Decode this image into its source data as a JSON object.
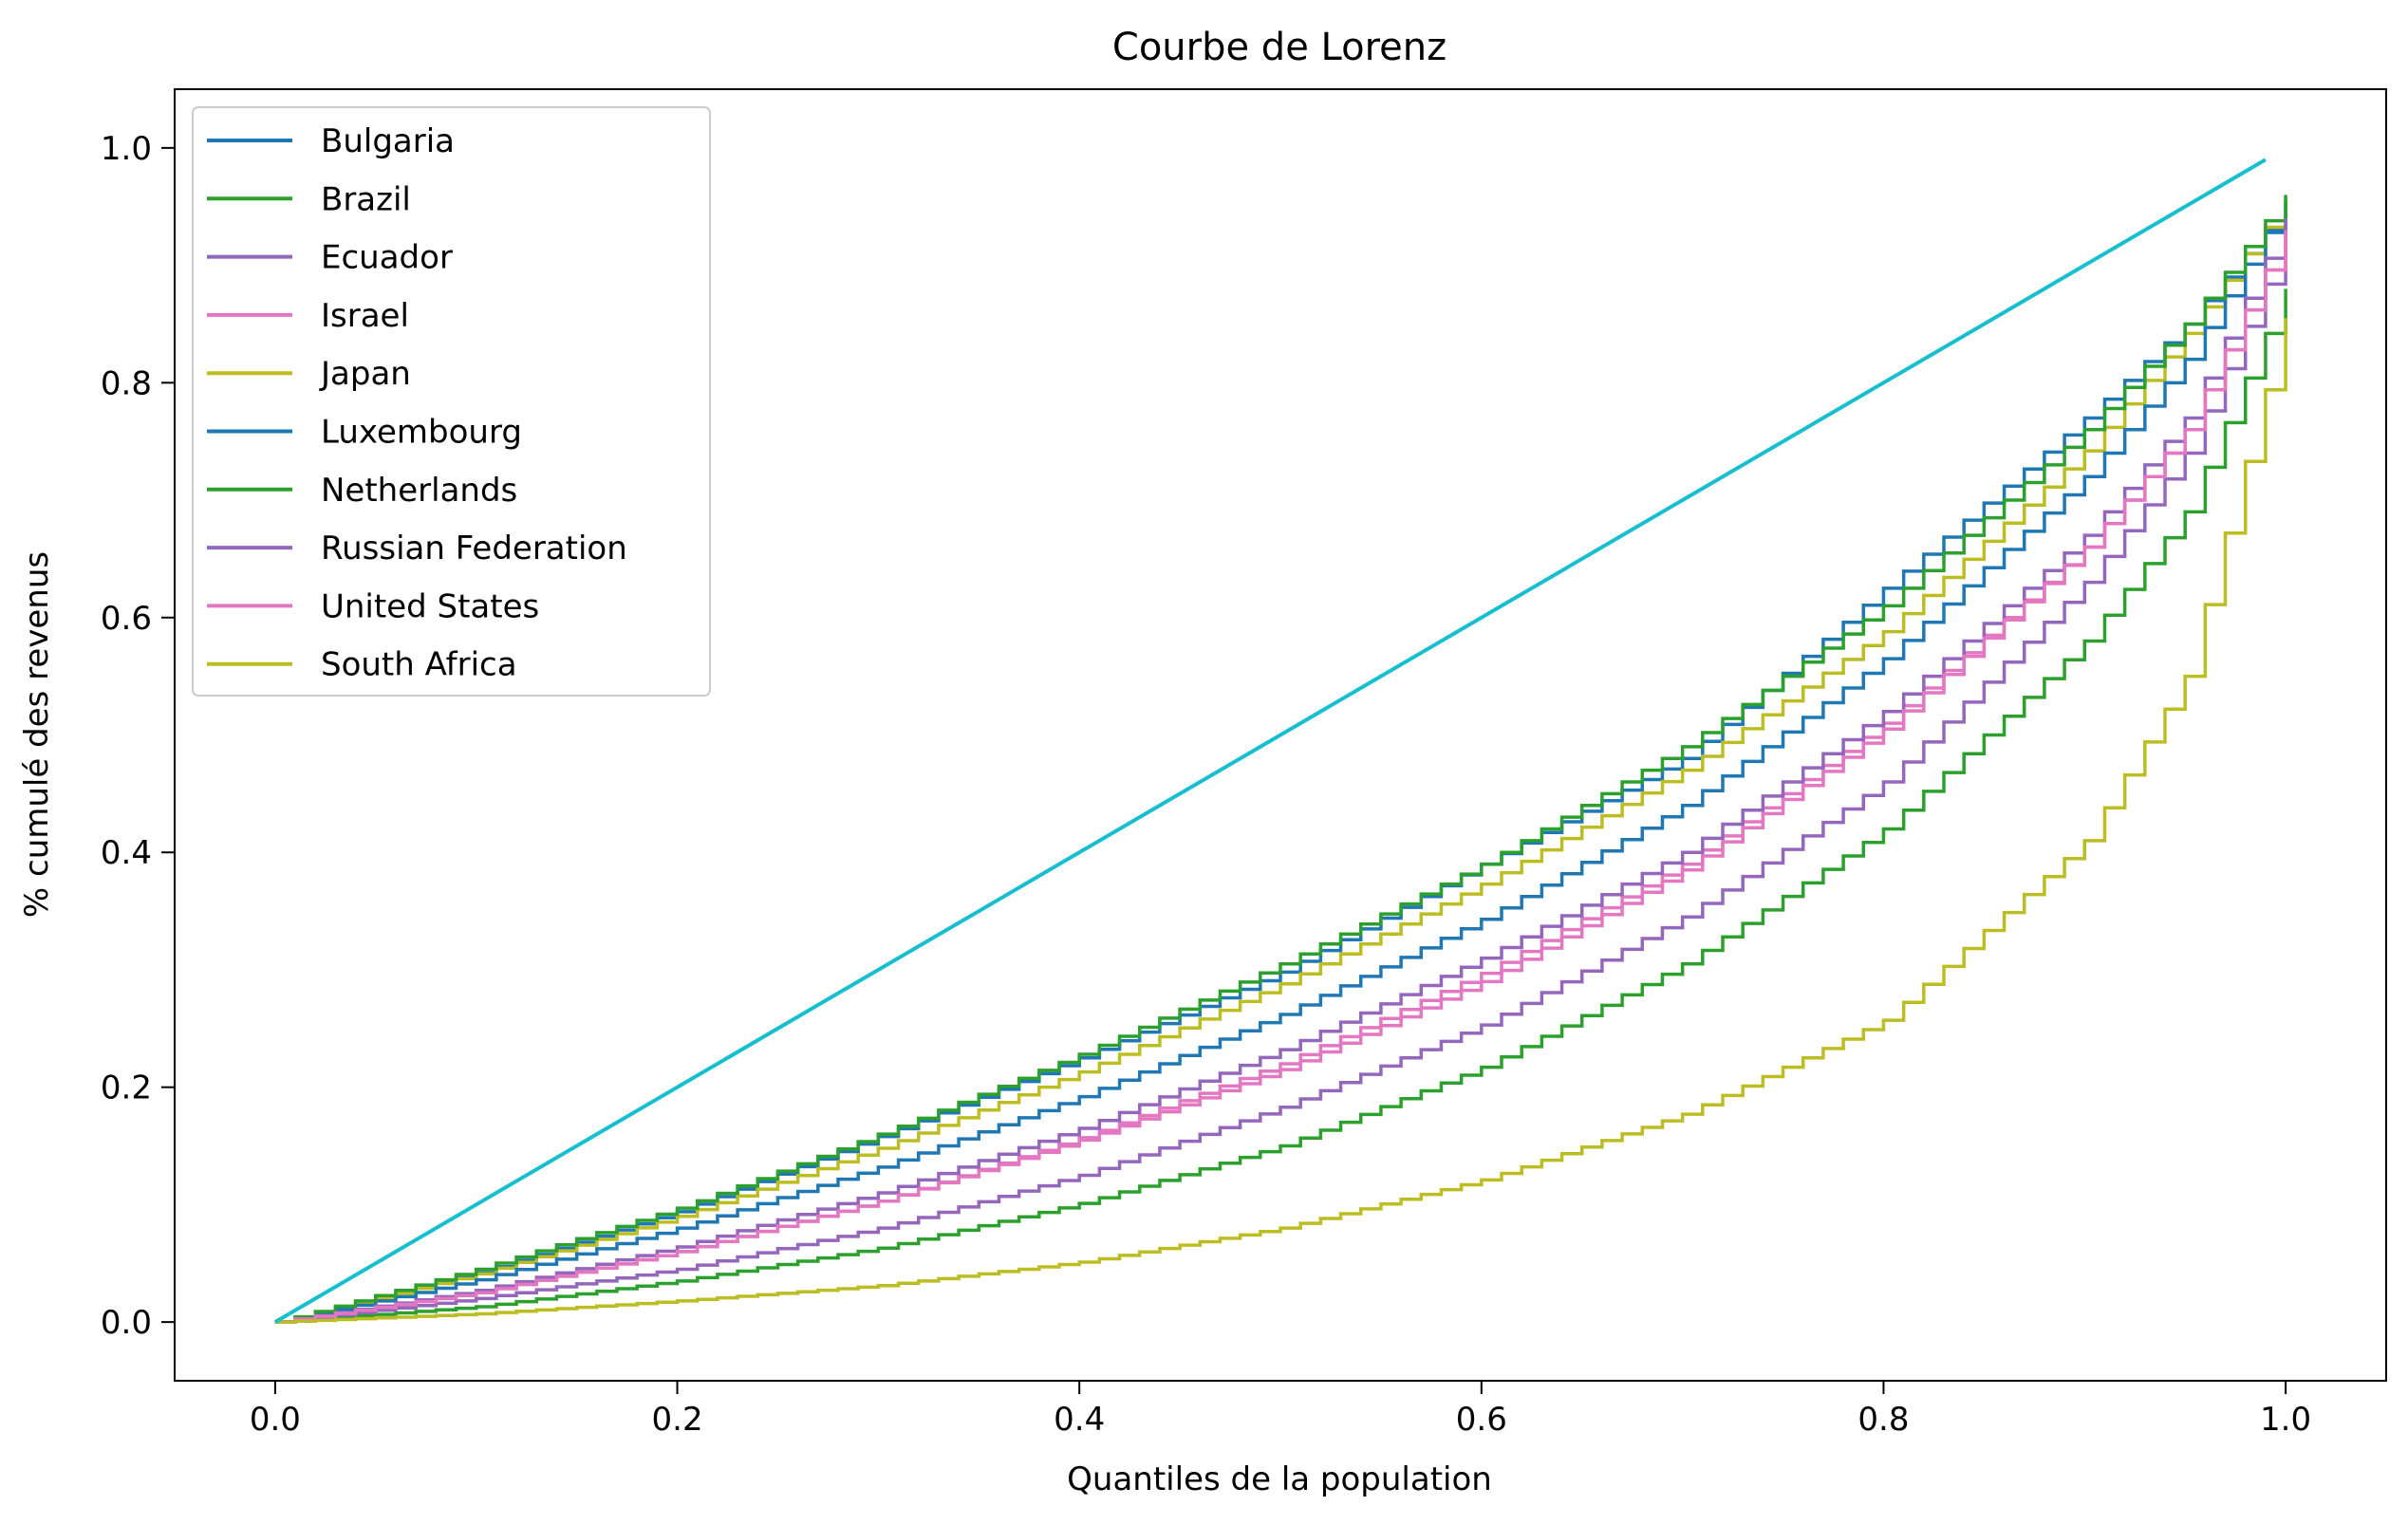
{
  "chart_data": {
    "type": "line",
    "title": "Courbe de Lorenz",
    "xlabel": "Quantiles de la population",
    "ylabel": "% cumulé des revenus",
    "xlim": [
      -0.05,
      1.05
    ],
    "ylim": [
      -0.05,
      1.05
    ],
    "x_ticks": [
      0.0,
      0.2,
      0.4,
      0.6,
      0.8,
      1.0
    ],
    "x_tick_labels": [
      "0.0",
      "0.2",
      "0.4",
      "0.6",
      "0.8",
      "1.0"
    ],
    "y_ticks": [
      0.0,
      0.2,
      0.4,
      0.6,
      0.8,
      1.0
    ],
    "y_tick_labels": [
      "0.0",
      "0.2",
      "0.4",
      "0.6",
      "0.8",
      "1.0"
    ],
    "grid": false,
    "legend_position": "top-left",
    "step_count": 100,
    "x": [
      0.0,
      0.1,
      0.2,
      0.3,
      0.4,
      0.5,
      0.6,
      0.7,
      0.8,
      0.9,
      0.95,
      1.0
    ],
    "series": [
      {
        "name": "Bulgaria",
        "color": "#1f77b4",
        "step": true,
        "values": [
          0.0,
          0.042,
          0.094,
          0.158,
          0.225,
          0.298,
          0.39,
          0.48,
          0.625,
          0.77,
          0.85,
          0.95
        ]
      },
      {
        "name": "Brazil",
        "color": "#2ca02c",
        "step": true,
        "values": [
          0.0,
          0.013,
          0.035,
          0.063,
          0.101,
          0.15,
          0.217,
          0.305,
          0.42,
          0.58,
          0.69,
          0.88
        ]
      },
      {
        "name": "Ecuador",
        "color": "#9467bd",
        "step": true,
        "values": [
          0.0,
          0.02,
          0.045,
          0.08,
          0.125,
          0.183,
          0.253,
          0.345,
          0.46,
          0.63,
          0.74,
          0.92
        ]
      },
      {
        "name": "Israel",
        "color": "#e377c2",
        "step": true,
        "values": [
          0.0,
          0.025,
          0.06,
          0.103,
          0.157,
          0.22,
          0.297,
          0.39,
          0.51,
          0.66,
          0.76,
          0.93
        ]
      },
      {
        "name": "Japan",
        "color": "#bcbd22",
        "step": true,
        "values": [
          0.0,
          0.041,
          0.09,
          0.148,
          0.213,
          0.288,
          0.373,
          0.47,
          0.588,
          0.742,
          0.842,
          0.955
        ]
      },
      {
        "name": "Luxembourg",
        "color": "#1f77b4",
        "step": true,
        "values": [
          0.0,
          0.036,
          0.08,
          0.132,
          0.192,
          0.262,
          0.343,
          0.44,
          0.565,
          0.72,
          0.82,
          0.955
        ]
      },
      {
        "name": "Netherlands",
        "color": "#2ca02c",
        "step": true,
        "values": [
          0.0,
          0.045,
          0.097,
          0.16,
          0.228,
          0.305,
          0.39,
          0.49,
          0.61,
          0.76,
          0.85,
          0.96
        ]
      },
      {
        "name": "Russian Federation",
        "color": "#9467bd",
        "step": true,
        "values": [
          0.0,
          0.027,
          0.064,
          0.11,
          0.165,
          0.232,
          0.31,
          0.4,
          0.52,
          0.67,
          0.77,
          0.94
        ]
      },
      {
        "name": "United States",
        "color": "#e377c2",
        "step": true,
        "values": [
          0.0,
          0.025,
          0.06,
          0.103,
          0.155,
          0.215,
          0.29,
          0.385,
          0.505,
          0.66,
          0.76,
          0.93
        ]
      },
      {
        "name": "South Africa",
        "color": "#bcbd22",
        "step": true,
        "values": [
          0.0,
          0.007,
          0.018,
          0.031,
          0.051,
          0.08,
          0.121,
          0.177,
          0.257,
          0.41,
          0.55,
          0.855
        ]
      }
    ],
    "equality_line": {
      "color": "#17becf",
      "x": [
        0.0,
        0.99
      ],
      "values": [
        0.0,
        0.99
      ]
    }
  }
}
